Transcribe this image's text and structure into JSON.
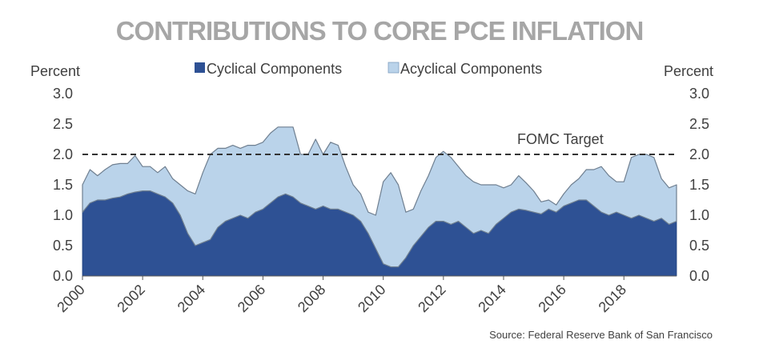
{
  "chart_data": {
    "type": "area",
    "title": "CONTRIBUTIONS TO CORE PCE INFLATION",
    "ylabel_left": "Percent",
    "ylabel_right": "Percent",
    "ylim": [
      0,
      3
    ],
    "yticks": [
      "0.0",
      "0.5",
      "1.0",
      "1.5",
      "2.0",
      "2.5",
      "3.0"
    ],
    "xlim": [
      2000,
      2019.75
    ],
    "xticks": [
      "2000",
      "2002",
      "2004",
      "2006",
      "2008",
      "2010",
      "2012",
      "2014",
      "2016",
      "2018"
    ],
    "stacked": true,
    "legend_position": "top",
    "x": [
      2000.0,
      2000.25,
      2000.5,
      2000.75,
      2001.0,
      2001.25,
      2001.5,
      2001.75,
      2002.0,
      2002.25,
      2002.5,
      2002.75,
      2003.0,
      2003.25,
      2003.5,
      2003.75,
      2004.0,
      2004.25,
      2004.5,
      2004.75,
      2005.0,
      2005.25,
      2005.5,
      2005.75,
      2006.0,
      2006.25,
      2006.5,
      2006.75,
      2007.0,
      2007.25,
      2007.5,
      2007.75,
      2008.0,
      2008.25,
      2008.5,
      2008.75,
      2009.0,
      2009.25,
      2009.5,
      2009.75,
      2010.0,
      2010.25,
      2010.5,
      2010.75,
      2011.0,
      2011.25,
      2011.5,
      2011.75,
      2012.0,
      2012.25,
      2012.5,
      2012.75,
      2013.0,
      2013.25,
      2013.5,
      2013.75,
      2014.0,
      2014.25,
      2014.5,
      2014.75,
      2015.0,
      2015.25,
      2015.5,
      2015.75,
      2016.0,
      2016.25,
      2016.5,
      2016.75,
      2017.0,
      2017.25,
      2017.5,
      2017.75,
      2018.0,
      2018.25,
      2018.5,
      2018.75,
      2019.0,
      2019.25,
      2019.5,
      2019.75
    ],
    "series": [
      {
        "name": "Cyclical Components",
        "color": "#2e5194",
        "values": [
          1.05,
          1.2,
          1.25,
          1.25,
          1.28,
          1.3,
          1.35,
          1.38,
          1.4,
          1.4,
          1.35,
          1.3,
          1.2,
          1.0,
          0.7,
          0.5,
          0.55,
          0.6,
          0.8,
          0.9,
          0.95,
          1.0,
          0.95,
          1.05,
          1.1,
          1.2,
          1.3,
          1.35,
          1.3,
          1.2,
          1.15,
          1.1,
          1.15,
          1.1,
          1.1,
          1.05,
          1.0,
          0.9,
          0.7,
          0.45,
          0.2,
          0.15,
          0.15,
          0.3,
          0.5,
          0.65,
          0.8,
          0.9,
          0.9,
          0.85,
          0.9,
          0.8,
          0.7,
          0.75,
          0.7,
          0.85,
          0.95,
          1.05,
          1.1,
          1.08,
          1.05,
          1.02,
          1.1,
          1.05,
          1.15,
          1.2,
          1.25,
          1.25,
          1.15,
          1.05,
          1.0,
          1.05,
          1.0,
          0.95,
          1.0,
          0.95,
          0.9,
          0.95,
          0.85,
          0.9
        ]
      },
      {
        "name": "Acyclical Components",
        "color": "#bad3ea",
        "values": [
          0.45,
          0.55,
          0.4,
          0.5,
          0.55,
          0.55,
          0.5,
          0.6,
          0.4,
          0.4,
          0.35,
          0.5,
          0.4,
          0.5,
          0.7,
          0.85,
          1.15,
          1.4,
          1.3,
          1.2,
          1.2,
          1.1,
          1.2,
          1.1,
          1.1,
          1.15,
          1.15,
          1.1,
          1.15,
          0.8,
          0.85,
          1.15,
          0.85,
          1.1,
          1.05,
          0.75,
          0.5,
          0.45,
          0.35,
          0.55,
          1.35,
          1.55,
          1.35,
          0.75,
          0.6,
          0.75,
          0.85,
          1.05,
          1.15,
          1.1,
          0.9,
          0.85,
          0.85,
          0.75,
          0.8,
          0.65,
          0.5,
          0.45,
          0.55,
          0.45,
          0.35,
          0.2,
          0.15,
          0.12,
          0.2,
          0.3,
          0.35,
          0.5,
          0.6,
          0.75,
          0.65,
          0.5,
          0.55,
          1.0,
          1.0,
          1.05,
          1.05,
          0.65,
          0.6,
          0.6
        ]
      }
    ],
    "reference_line": {
      "value": 2.0,
      "label": "FOMC Target",
      "style": "dashed"
    },
    "annotations": [
      "Source: Federal Reserve Bank of San Francisco"
    ]
  }
}
